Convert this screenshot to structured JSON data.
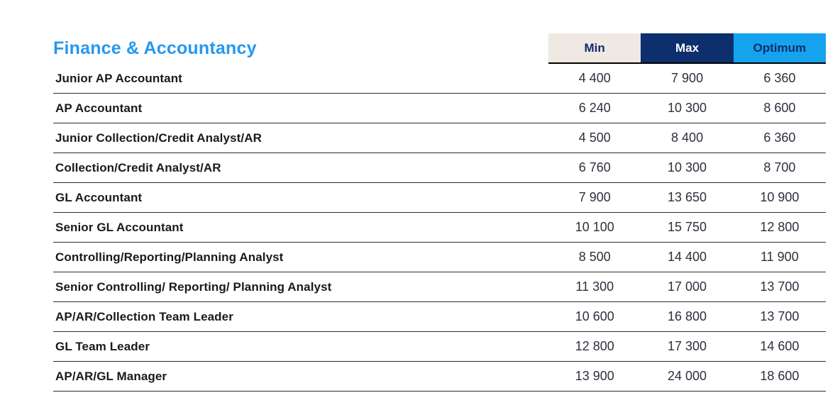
{
  "page": {
    "title": "Finance & Accountancy"
  },
  "colors": {
    "title_blue": "#2598f1",
    "min_header_bg": "#eee9e3",
    "max_header_bg": "#0d2f6d",
    "optimum_header_bg": "#16a3ee",
    "header_text_navy": "#14276b",
    "row_separator": "#2e2e2e"
  },
  "table": {
    "columns": [
      {
        "label": "Min"
      },
      {
        "label": "Max"
      },
      {
        "label": "Optimum"
      }
    ],
    "rows": [
      {
        "label": "Junior AP Accountant",
        "min": "4 400",
        "max": "7 900",
        "optimum": "6 360"
      },
      {
        "label": "AP Accountant",
        "min": "6 240",
        "max": "10 300",
        "optimum": "8 600"
      },
      {
        "label": "Junior Collection/Credit Analyst/AR",
        "min": "4 500",
        "max": "8 400",
        "optimum": "6 360"
      },
      {
        "label": "Collection/Credit Analyst/AR",
        "min": "6 760",
        "max": "10 300",
        "optimum": "8 700"
      },
      {
        "label": "GL Accountant",
        "min": "7 900",
        "max": "13 650",
        "optimum": "10 900"
      },
      {
        "label": "Senior GL Accountant",
        "min": "10 100",
        "max": "15 750",
        "optimum": "12 800"
      },
      {
        "label": "Controlling/Reporting/Planning Analyst",
        "min": "8 500",
        "max": "14 400",
        "optimum": "11 900"
      },
      {
        "label": "Senior Controlling/ Reporting/ Planning Analyst",
        "min": "11 300",
        "max": "17 000",
        "optimum": "13 700"
      },
      {
        "label": "AP/AR/Collection Team Leader",
        "min": "10 600",
        "max": "16 800",
        "optimum": "13 700"
      },
      {
        "label": "GL Team Leader",
        "min": "12 800",
        "max": "17 300",
        "optimum": "14 600"
      },
      {
        "label": "AP/AR/GL Manager",
        "min": "13 900",
        "max": "24 000",
        "optimum": "18 600"
      }
    ]
  }
}
